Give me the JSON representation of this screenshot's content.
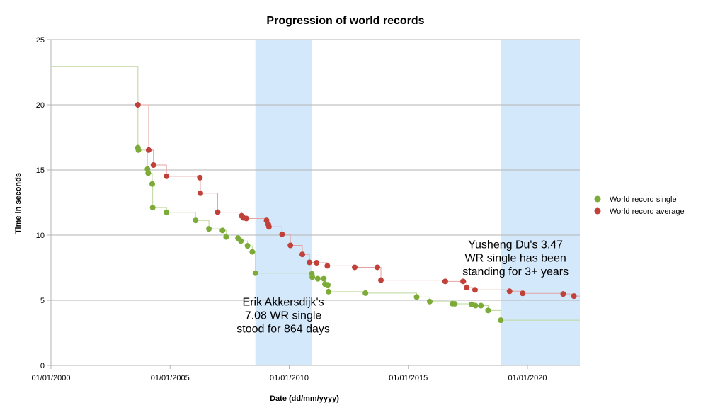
{
  "chart_data": {
    "type": "scatter",
    "title": "Progression of world records",
    "xlabel": "Date (dd/mm/yyyy)",
    "ylabel": "Time in seconds",
    "xlim": [
      2000.0,
      2022.2
    ],
    "ylim": [
      0,
      25
    ],
    "x_ticks": [
      2000,
      2005,
      2010,
      2015,
      2020
    ],
    "x_tick_labels": [
      "01/01/2000",
      "01/01/2005",
      "01/01/2010",
      "01/01/2015",
      "01/01/2020"
    ],
    "y_ticks": [
      0,
      5,
      10,
      15,
      20,
      25
    ],
    "y_tick_labels": [
      "0",
      "5",
      "10",
      "15",
      "20",
      "25"
    ],
    "grid": true,
    "legend_position": "right",
    "series": [
      {
        "name": "World record single",
        "color": "#7cab38",
        "step_start": [
          2000.0,
          22.95
        ],
        "points": [
          [
            2003.65,
            16.71
          ],
          [
            2003.67,
            16.53
          ],
          [
            2004.05,
            15.07
          ],
          [
            2004.08,
            14.76
          ],
          [
            2004.25,
            13.93
          ],
          [
            2004.27,
            12.11
          ],
          [
            2004.85,
            11.75
          ],
          [
            2006.07,
            11.13
          ],
          [
            2006.63,
            10.48
          ],
          [
            2007.2,
            10.36
          ],
          [
            2007.35,
            9.86
          ],
          [
            2007.85,
            9.77
          ],
          [
            2007.97,
            9.55
          ],
          [
            2008.25,
            9.18
          ],
          [
            2008.45,
            8.72
          ],
          [
            2008.58,
            7.08
          ],
          [
            2010.95,
            7.03
          ],
          [
            2010.97,
            6.77
          ],
          [
            2011.2,
            6.65
          ],
          [
            2011.45,
            6.65
          ],
          [
            2011.5,
            6.24
          ],
          [
            2011.62,
            6.18
          ],
          [
            2011.65,
            5.66
          ],
          [
            2013.2,
            5.55
          ],
          [
            2015.35,
            5.25
          ],
          [
            2015.9,
            4.9
          ],
          [
            2016.85,
            4.74
          ],
          [
            2016.95,
            4.73
          ],
          [
            2017.65,
            4.69
          ],
          [
            2017.82,
            4.59
          ],
          [
            2018.05,
            4.59
          ],
          [
            2018.35,
            4.22
          ],
          [
            2018.88,
            3.47
          ]
        ]
      },
      {
        "name": "World record average",
        "color": "#c0403a",
        "points": [
          [
            2003.65,
            20.0
          ],
          [
            2004.1,
            16.53
          ],
          [
            2004.3,
            15.38
          ],
          [
            2004.85,
            14.52
          ],
          [
            2006.25,
            14.41
          ],
          [
            2006.27,
            13.22
          ],
          [
            2007.0,
            11.76
          ],
          [
            2008.0,
            11.48
          ],
          [
            2008.08,
            11.33
          ],
          [
            2008.2,
            11.28
          ],
          [
            2009.05,
            11.13
          ],
          [
            2009.12,
            10.83
          ],
          [
            2009.15,
            10.64
          ],
          [
            2009.7,
            10.07
          ],
          [
            2010.05,
            9.21
          ],
          [
            2010.55,
            8.52
          ],
          [
            2010.85,
            7.91
          ],
          [
            2011.15,
            7.88
          ],
          [
            2011.6,
            7.64
          ],
          [
            2012.75,
            7.53
          ],
          [
            2013.7,
            7.53
          ],
          [
            2013.85,
            6.54
          ],
          [
            2016.55,
            6.45
          ],
          [
            2017.3,
            6.45
          ],
          [
            2017.45,
            5.97
          ],
          [
            2017.8,
            5.8
          ],
          [
            2019.25,
            5.69
          ],
          [
            2019.8,
            5.53
          ],
          [
            2021.5,
            5.48
          ],
          [
            2021.95,
            5.32
          ]
        ]
      }
    ],
    "highlight_spans": [
      [
        2008.58,
        2010.95
      ],
      [
        2018.88,
        2022.2
      ]
    ],
    "annotations": [
      {
        "lines": [
          "Erik Akkersdijk's",
          "7.08 WR single",
          "stood for 864 days"
        ],
        "x": 2009.75,
        "y": 4.6
      },
      {
        "lines": [
          "Yusheng Du's 3.47",
          "WR single has been",
          "standing for 3+ years"
        ],
        "x": 2019.5,
        "y": 9.0
      }
    ]
  }
}
